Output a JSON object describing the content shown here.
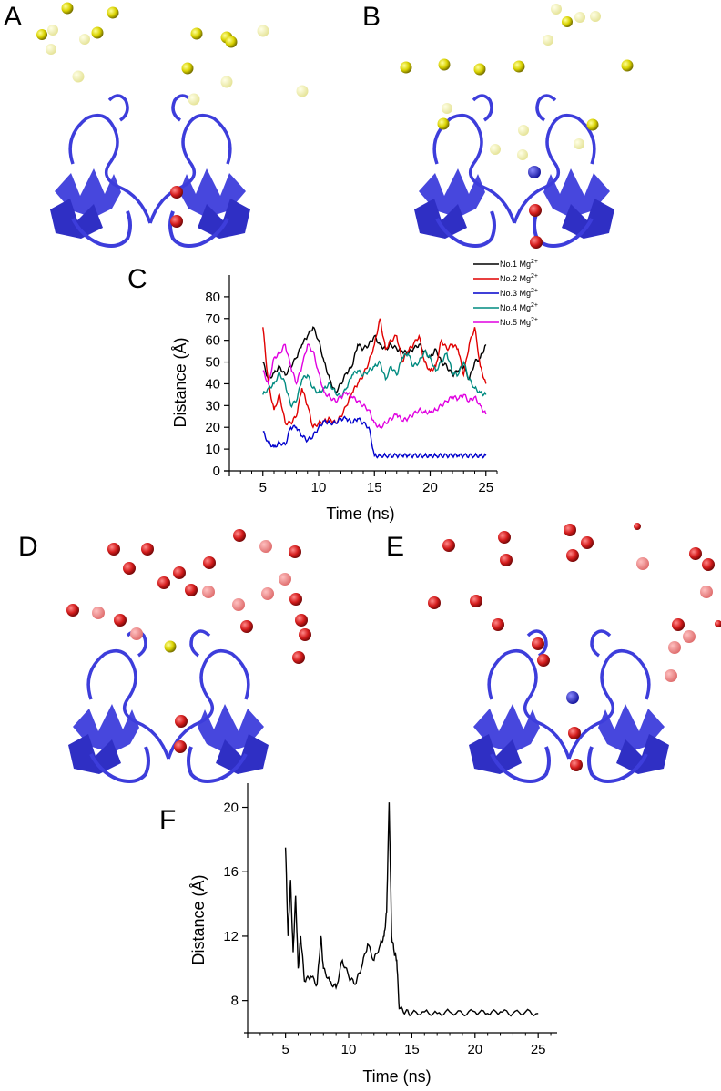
{
  "panels": {
    "A": "A",
    "B": "B",
    "C": "C",
    "D": "D",
    "E": "E",
    "F": "F"
  },
  "colors": {
    "protein": "#3d3ddb",
    "magnesium": "#d9d200",
    "chloride_red": "#d41c1c",
    "sodium_blue": "#2a2acc"
  },
  "chart_data": [
    {
      "panel": "C",
      "type": "line",
      "xlabel": "Time (ns)",
      "ylabel": "Distance (Å)",
      "xlim": [
        2,
        26
      ],
      "ylim": [
        0,
        90
      ],
      "xticks": [
        5,
        10,
        15,
        20,
        25
      ],
      "yticks": [
        0,
        10,
        20,
        30,
        40,
        50,
        60,
        70,
        80
      ],
      "legend_position": "top-right",
      "series": [
        {
          "name": "No.1 Mg2+",
          "label_main": "No.1 Mg",
          "label_sup": "2+",
          "color": "#000000",
          "x": [
            5,
            5.5,
            6,
            6.5,
            7,
            7.5,
            8,
            8.5,
            9,
            9.5,
            10,
            10.5,
            11,
            11.5,
            12,
            12.5,
            13,
            13.5,
            14,
            14.5,
            15,
            15.5,
            16,
            16.5,
            17,
            17.5,
            18,
            18.5,
            19,
            19.5,
            20,
            20.5,
            21,
            21.5,
            22,
            22.5,
            23,
            23.5,
            24,
            24.5,
            25
          ],
          "y": [
            50,
            42,
            45,
            48,
            44,
            48,
            52,
            58,
            62,
            66,
            60,
            50,
            42,
            36,
            40,
            45,
            48,
            58,
            56,
            58,
            62,
            58,
            56,
            58,
            56,
            55,
            54,
            56,
            58,
            55,
            52,
            56,
            50,
            48,
            44,
            46,
            48,
            42,
            50,
            52,
            58
          ]
        },
        {
          "name": "No.2 Mg2+",
          "label_main": "No.2 Mg",
          "label_sup": "2+",
          "color": "#e00000",
          "x": [
            5,
            5.5,
            6,
            6.5,
            7,
            7.5,
            8,
            8.5,
            9,
            9.5,
            10,
            10.5,
            11,
            11.5,
            12,
            12.5,
            13,
            13.5,
            14,
            14.5,
            15,
            15.5,
            16,
            16.5,
            17,
            17.5,
            18,
            18.5,
            19,
            19.5,
            20,
            20.5,
            21,
            21.5,
            22,
            22.5,
            23,
            23.5,
            24,
            24.5,
            25
          ],
          "y": [
            66,
            40,
            28,
            35,
            22,
            22,
            25,
            38,
            30,
            20,
            22,
            23,
            24,
            22,
            25,
            30,
            36,
            40,
            44,
            50,
            58,
            70,
            56,
            60,
            62,
            50,
            55,
            58,
            62,
            50,
            46,
            48,
            60,
            56,
            58,
            56,
            44,
            58,
            66,
            48,
            40
          ]
        },
        {
          "name": "No.3 Mg2+",
          "label_main": "No.3 Mg",
          "label_sup": "2+",
          "color": "#0000cc",
          "x": [
            5,
            5.5,
            6,
            6.5,
            7,
            7.5,
            8,
            8.5,
            9,
            9.5,
            10,
            10.5,
            11,
            11.5,
            12,
            12.5,
            13,
            13.5,
            14,
            14.5,
            15,
            15.5,
            16,
            16.5,
            17,
            17.5,
            18,
            18.5,
            19,
            19.5,
            20,
            20.5,
            21,
            21.5,
            22,
            22.5,
            23,
            23.5,
            24,
            24.5,
            25
          ],
          "y": [
            18,
            13,
            11,
            13,
            12,
            20,
            20,
            16,
            14,
            16,
            20,
            23,
            22,
            22,
            24,
            24,
            22,
            24,
            22,
            20,
            7,
            7,
            7,
            7,
            7,
            7,
            7,
            7,
            7,
            7,
            7,
            7,
            7,
            7,
            7,
            7,
            7,
            7,
            7,
            7,
            7
          ]
        },
        {
          "name": "No.4 Mg2+",
          "label_main": "No.4 Mg",
          "label_sup": "2+",
          "color": "#008b80",
          "x": [
            5,
            5.5,
            6,
            6.5,
            7,
            7.5,
            8,
            8.5,
            9,
            9.5,
            10,
            10.5,
            11,
            11.5,
            12,
            12.5,
            13,
            13.5,
            14,
            14.5,
            15,
            15.5,
            16,
            16.5,
            17,
            17.5,
            18,
            18.5,
            19,
            19.5,
            20,
            20.5,
            21,
            21.5,
            22,
            22.5,
            23,
            23.5,
            24,
            24.5,
            25
          ],
          "y": [
            35,
            38,
            40,
            45,
            40,
            30,
            32,
            42,
            44,
            38,
            36,
            38,
            40,
            36,
            34,
            38,
            44,
            46,
            44,
            46,
            48,
            50,
            42,
            48,
            44,
            52,
            54,
            48,
            50,
            55,
            52,
            46,
            50,
            54,
            45,
            44,
            50,
            42,
            38,
            36,
            35
          ]
        },
        {
          "name": "No.5 Mg2+",
          "label_main": "No.5 Mg",
          "label_sup": "2+",
          "color": "#e000e0",
          "x": [
            5,
            5.5,
            6,
            6.5,
            7,
            7.5,
            8,
            8.5,
            9,
            9.5,
            10,
            10.5,
            11,
            11.5,
            12,
            12.5,
            13,
            13.5,
            14,
            14.5,
            15,
            15.5,
            16,
            16.5,
            17,
            17.5,
            18,
            18.5,
            19,
            19.5,
            20,
            20.5,
            21,
            21.5,
            22,
            22.5,
            23,
            23.5,
            24,
            24.5,
            25
          ],
          "y": [
            46,
            40,
            52,
            54,
            58,
            48,
            40,
            48,
            58,
            55,
            45,
            36,
            34,
            32,
            34,
            36,
            34,
            32,
            30,
            28,
            22,
            20,
            22,
            24,
            26,
            23,
            24,
            26,
            28,
            27,
            27,
            28,
            30,
            32,
            34,
            33,
            35,
            32,
            34,
            30,
            26
          ]
        }
      ]
    },
    {
      "panel": "F",
      "type": "line",
      "xlabel": "Time (ns)",
      "ylabel": "Distance (Å)",
      "xlim": [
        2,
        26.5
      ],
      "ylim": [
        6,
        21.5
      ],
      "xticks": [
        5,
        10,
        15,
        20,
        25
      ],
      "yticks": [
        8,
        12,
        16,
        20
      ],
      "series": [
        {
          "color": "#000000",
          "x": [
            5,
            5.2,
            5.4,
            5.6,
            5.8,
            6,
            6.2,
            6.5,
            7,
            7.5,
            7.8,
            8,
            8.5,
            9,
            9.5,
            10,
            10.5,
            11,
            11.5,
            12,
            12.5,
            12.8,
            13,
            13.2,
            13.4,
            13.6,
            13.8,
            14,
            14.5,
            15,
            16,
            17,
            18,
            19,
            20,
            21,
            22,
            23,
            24,
            25
          ],
          "y": [
            17.5,
            12,
            15.5,
            11,
            14.5,
            10,
            12,
            9.2,
            9.5,
            9,
            12,
            10,
            9.2,
            8.8,
            10.5,
            9.5,
            9,
            10,
            11.5,
            10.5,
            11.5,
            12,
            13.5,
            20.3,
            12,
            11,
            10.5,
            7.5,
            7.3,
            7.2,
            7.3,
            7.2,
            7.3,
            7.2,
            7.3,
            7.2,
            7.3,
            7.2,
            7.3,
            7.2
          ]
        }
      ]
    }
  ]
}
